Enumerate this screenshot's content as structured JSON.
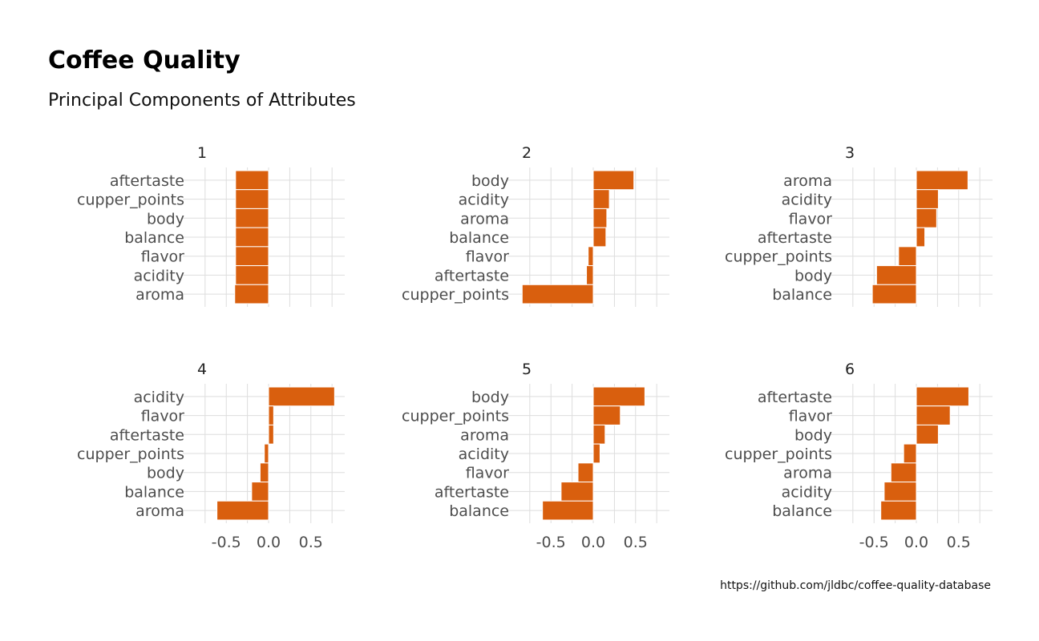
{
  "title": "Coffee Quality",
  "subtitle": "Principal Components of Attributes",
  "caption": "https://github.com/jldbc/coffee-quality-database",
  "colors": {
    "bar": "#d95f0e",
    "grid": "#dddddd"
  },
  "chart_data": {
    "type": "bar",
    "orientation": "horizontal",
    "xlim": [
      -0.9,
      0.9
    ],
    "x_ticks": [
      "-0.5",
      "0.0",
      "0.5"
    ],
    "grid": true,
    "panels": [
      {
        "label": "1",
        "categories": [
          "aftertaste",
          "cupper_points",
          "body",
          "balance",
          "flavor",
          "acidity",
          "aroma"
        ],
        "values": [
          -0.39,
          -0.39,
          -0.39,
          -0.39,
          -0.39,
          -0.39,
          -0.4
        ]
      },
      {
        "label": "2",
        "categories": [
          "body",
          "acidity",
          "aroma",
          "balance",
          "flavor",
          "aftertaste",
          "cupper_points"
        ],
        "values": [
          0.48,
          0.19,
          0.16,
          0.15,
          -0.06,
          -0.08,
          -0.84
        ]
      },
      {
        "label": "3",
        "categories": [
          "aroma",
          "acidity",
          "flavor",
          "aftertaste",
          "cupper_points",
          "body",
          "balance"
        ],
        "values": [
          0.61,
          0.26,
          0.24,
          0.1,
          -0.21,
          -0.47,
          -0.52
        ]
      },
      {
        "label": "4",
        "categories": [
          "acidity",
          "flavor",
          "aftertaste",
          "cupper_points",
          "body",
          "balance",
          "aroma"
        ],
        "values": [
          0.78,
          0.06,
          0.06,
          -0.05,
          -0.1,
          -0.2,
          -0.61
        ]
      },
      {
        "label": "5",
        "categories": [
          "body",
          "cupper_points",
          "aroma",
          "acidity",
          "flavor",
          "aftertaste",
          "balance"
        ],
        "values": [
          0.61,
          0.32,
          0.14,
          0.08,
          -0.18,
          -0.38,
          -0.6
        ]
      },
      {
        "label": "6",
        "categories": [
          "aftertaste",
          "flavor",
          "body",
          "cupper_points",
          "aroma",
          "acidity",
          "balance"
        ],
        "values": [
          0.62,
          0.4,
          0.26,
          -0.15,
          -0.3,
          -0.38,
          -0.42
        ]
      }
    ]
  }
}
